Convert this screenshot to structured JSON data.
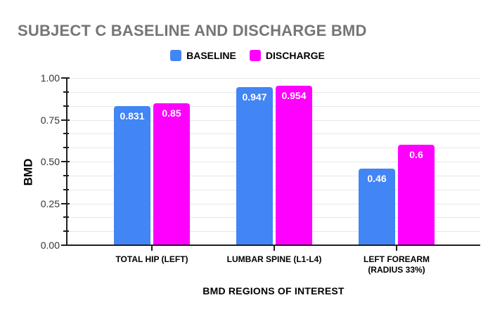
{
  "chart_data": {
    "type": "bar",
    "title": "SUBJECT C BASELINE AND DISCHARGE BMD",
    "categories": [
      "TOTAL HIP (LEFT)",
      "LUMBAR SPINE (L1-L4)",
      "LEFT FOREARM (RADIUS 33%)"
    ],
    "category_label_lines": [
      [
        "TOTAL HIP (LEFT)"
      ],
      [
        "LUMBAR SPINE (L1-L4)"
      ],
      [
        "LEFT FOREARM",
        "(RADIUS 33%)"
      ]
    ],
    "series": [
      {
        "name": "BASELINE",
        "color": "#4285F4",
        "values": [
          0.831,
          0.947,
          0.46
        ]
      },
      {
        "name": "DISCHARGE",
        "color": "#FF00FF",
        "values": [
          0.85,
          0.954,
          0.6
        ]
      }
    ],
    "data_labels": [
      [
        "0.831",
        "0.947",
        "0.46"
      ],
      [
        "0.85",
        "0.954",
        "0.6"
      ]
    ],
    "xlabel": "BMD REGIONS OF INTEREST",
    "ylabel": "BMD",
    "ylim": [
      0,
      1.0
    ],
    "y_axis": {
      "tick_values": [
        0,
        0.25,
        0.5,
        0.75,
        1.0
      ],
      "tick_labels": [
        "0.00",
        "0.25",
        "0.50",
        "0.75",
        "1.00"
      ],
      "minor_divisions_per_major": 3
    },
    "grid": true,
    "legend_position": "top",
    "colors": {
      "title_text": "#757575",
      "axis_line": "#1f1f1f",
      "gridline": "#e7e7e7",
      "value_label_text": "#ffffff"
    }
  }
}
